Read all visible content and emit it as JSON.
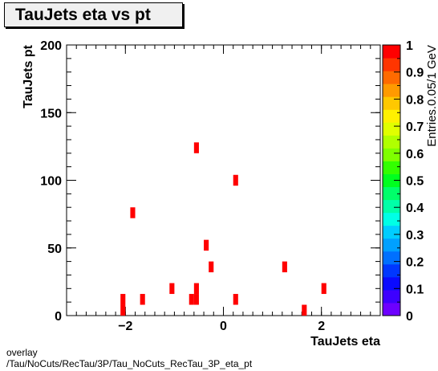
{
  "title": "TauJets eta vs pt",
  "footer": {
    "line1": "overlay",
    "line2": "/Tau/NoCuts/RecTau/3P/Tau_NoCuts_RecTau_3P_eta_pt"
  },
  "chart_data": {
    "type": "heatmap",
    "title": "TauJets eta vs pt",
    "xlabel": "TauJets eta",
    "ylabel": "TauJets pt",
    "zlabel": "Entries.0.05/1 GeV",
    "xlim": [
      -3.2,
      3.2
    ],
    "ylim": [
      0,
      200
    ],
    "zlim": [
      0,
      1
    ],
    "x_ticks": [
      -2,
      0,
      2
    ],
    "x_tick_labels": [
      "−2",
      "0",
      "2"
    ],
    "y_ticks": [
      0,
      50,
      100,
      150,
      200
    ],
    "z_ticks": [
      0,
      0.1,
      0.2,
      0.3,
      0.4,
      0.5,
      0.6,
      0.7,
      0.8,
      0.9,
      1
    ],
    "grid": false,
    "bin_width_x": 0.1,
    "bin_width_y": 8,
    "points": [
      {
        "x": -2.05,
        "y": 4,
        "value": 1
      },
      {
        "x": -2.05,
        "y": 12,
        "value": 1
      },
      {
        "x": -1.85,
        "y": 76,
        "value": 1
      },
      {
        "x": -1.65,
        "y": 12,
        "value": 1
      },
      {
        "x": -1.05,
        "y": 20,
        "value": 1
      },
      {
        "x": -0.65,
        "y": 12,
        "value": 1
      },
      {
        "x": -0.55,
        "y": 12,
        "value": 1
      },
      {
        "x": -0.55,
        "y": 20,
        "value": 1
      },
      {
        "x": -0.55,
        "y": 124,
        "value": 1
      },
      {
        "x": -0.35,
        "y": 52,
        "value": 1
      },
      {
        "x": -0.25,
        "y": 36,
        "value": 1
      },
      {
        "x": 0.25,
        "y": 12,
        "value": 1
      },
      {
        "x": 0.25,
        "y": 100,
        "value": 1
      },
      {
        "x": 1.25,
        "y": 36,
        "value": 1
      },
      {
        "x": 1.65,
        "y": 4,
        "value": 1
      },
      {
        "x": 2.05,
        "y": 20,
        "value": 1
      }
    ],
    "palette": [
      "#6d00ff",
      "#3d00ff",
      "#0a0aff",
      "#0037ff",
      "#0070ff",
      "#00a0ff",
      "#00cdff",
      "#00ffe6",
      "#00ffa8",
      "#00ff6a",
      "#00ff1f",
      "#33ff00",
      "#7fff00",
      "#b0ff00",
      "#e0ff00",
      "#fff000",
      "#ffc800",
      "#ff9a00",
      "#ff6a00",
      "#ff3500",
      "#ff0000"
    ],
    "bin_color": "#ff0000"
  }
}
